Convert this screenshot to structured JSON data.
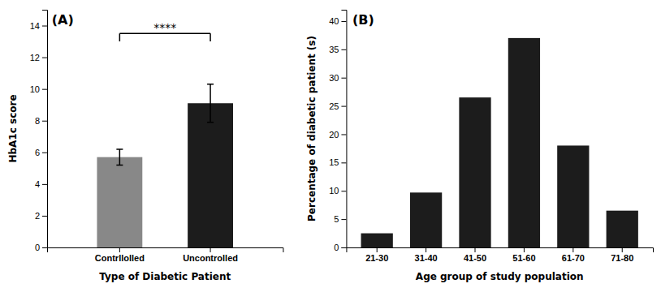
{
  "chart_data": [
    {
      "type": "bar",
      "title": "(A)",
      "categories": [
        "Contrllolled",
        "Uncontrolled"
      ],
      "values": [
        5.7,
        9.1
      ],
      "errors": [
        0.5,
        1.2
      ],
      "colors": [
        "#888888",
        "#1c1c1c"
      ],
      "ylabel": "HbA1c score",
      "xlabel": "Type of Diabetic Patient",
      "ylim": [
        0,
        15
      ],
      "yticks": [
        0,
        2,
        4,
        6,
        8,
        10,
        12,
        14
      ],
      "grid": false,
      "annotations": [
        {
          "text": "****",
          "y": 13.6,
          "bracket": [
            13.0,
            13.5
          ],
          "from": "Contrllolled",
          "to": "Uncontrolled"
        }
      ]
    },
    {
      "type": "bar",
      "title": "(B)",
      "categories": [
        "21-30",
        "31-40",
        "41-50",
        "51-60",
        "61-70",
        "71-80"
      ],
      "values": [
        2.5,
        9.7,
        26.5,
        37.0,
        18.0,
        6.5
      ],
      "color": "#1c1c1c",
      "ylabel": "Percentage of diabetic patient (s)",
      "xlabel": "Age group of study population",
      "ylim": [
        0,
        42
      ],
      "yticks": [
        0,
        5,
        10,
        15,
        20,
        25,
        30,
        35,
        40
      ],
      "grid": false
    }
  ]
}
